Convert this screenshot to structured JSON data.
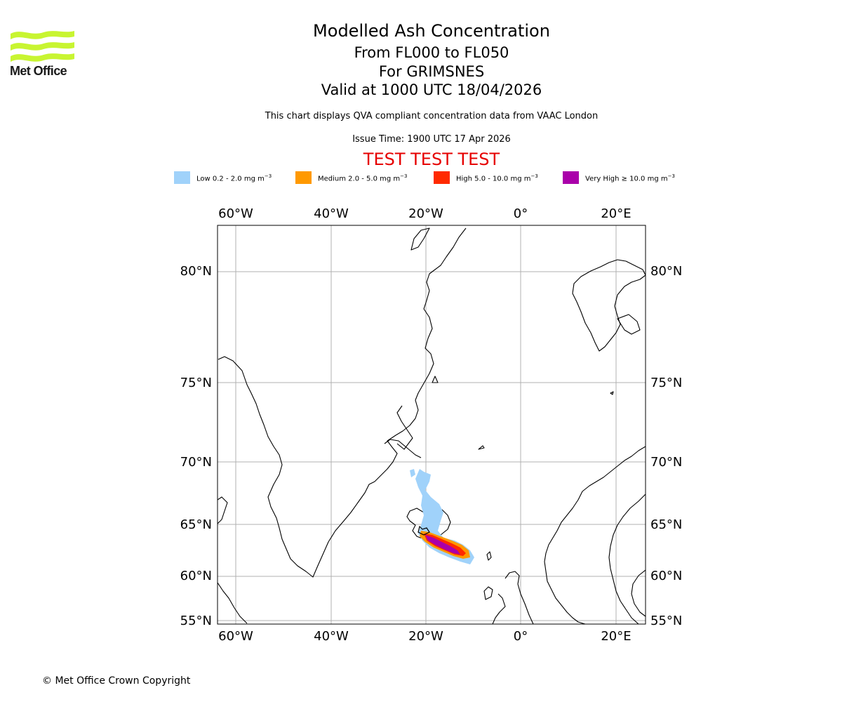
{
  "header": {
    "title": "Modelled Ash Concentration",
    "flight_levels": "From FL000 to FL050",
    "volcano": "For GRIMSNES",
    "valid_time": "Valid at 1000 UTC 18/04/2026",
    "subtitle": "This chart displays QVA compliant concentration data from VAAC London",
    "issue_time": "Issue Time: 1900 UTC 17 Apr 2026",
    "warning": "TEST TEST TEST"
  },
  "logo": {
    "text": "Met Office",
    "color": "#c8f531"
  },
  "legend": [
    {
      "label": "Low 0.2 - 2.0 mg m",
      "unit_exp": "−3",
      "color": "#a0d2fa"
    },
    {
      "label": "Medium 2.0 - 5.0 mg m",
      "unit_exp": "−3",
      "color": "#ff9900"
    },
    {
      "label": "High 5.0 - 10.0 mg m",
      "unit_exp": "−3",
      "color": "#ff2a00"
    },
    {
      "label": "Very High  ≥  10.0 mg m",
      "unit_exp": "−3",
      "color": "#aa00aa"
    }
  ],
  "map": {
    "lon_labels": [
      "60°W",
      "40°W",
      "20°W",
      "0°",
      "20°E"
    ],
    "lat_labels": [
      "80°N",
      "75°N",
      "70°N",
      "65°N",
      "60°N",
      "55°N"
    ]
  },
  "footer": {
    "copyright": "© Met Office Crown Copyright"
  }
}
